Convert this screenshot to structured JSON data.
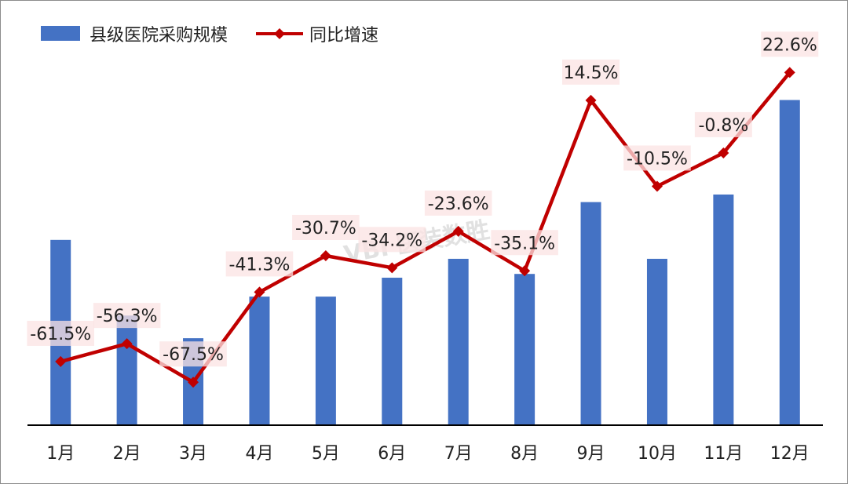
{
  "chart_data": {
    "type": "bar",
    "title": "",
    "xlabel": "",
    "ylabel": "",
    "categories": [
      "1月",
      "2月",
      "3月",
      "4月",
      "5月",
      "6月",
      "7月",
      "8月",
      "9月",
      "10月",
      "11月",
      "12月"
    ],
    "series": [
      {
        "name": "县级医院采购规模",
        "type": "bar",
        "values": [
          49,
          29,
          23,
          34,
          34,
          39,
          44,
          40,
          59,
          44,
          61,
          86
        ]
      },
      {
        "name": "同比增速",
        "type": "line",
        "values": [
          -61.5,
          -56.3,
          -67.5,
          -41.3,
          -30.7,
          -34.2,
          -23.6,
          -35.1,
          14.5,
          -10.5,
          -0.8,
          22.6
        ]
      }
    ],
    "data_labels": [
      "-61.5%",
      "-56.3%",
      "-67.5%",
      "-41.3%",
      "-30.7%",
      "-34.2%",
      "-23.6%",
      "-35.1%",
      "14.5%",
      "-10.5%",
      "-0.8%",
      "22.6%"
    ],
    "y_bar_range": [
      0,
      100
    ],
    "y_line_range": [
      -80,
      30
    ],
    "legend_position": "top-left",
    "grid": false
  },
  "watermark": "VBI 医装数胜",
  "colors": {
    "bar": "#4472c4",
    "line": "#c00000",
    "label_bg": "#fbe3e3",
    "axis": "#000000"
  }
}
